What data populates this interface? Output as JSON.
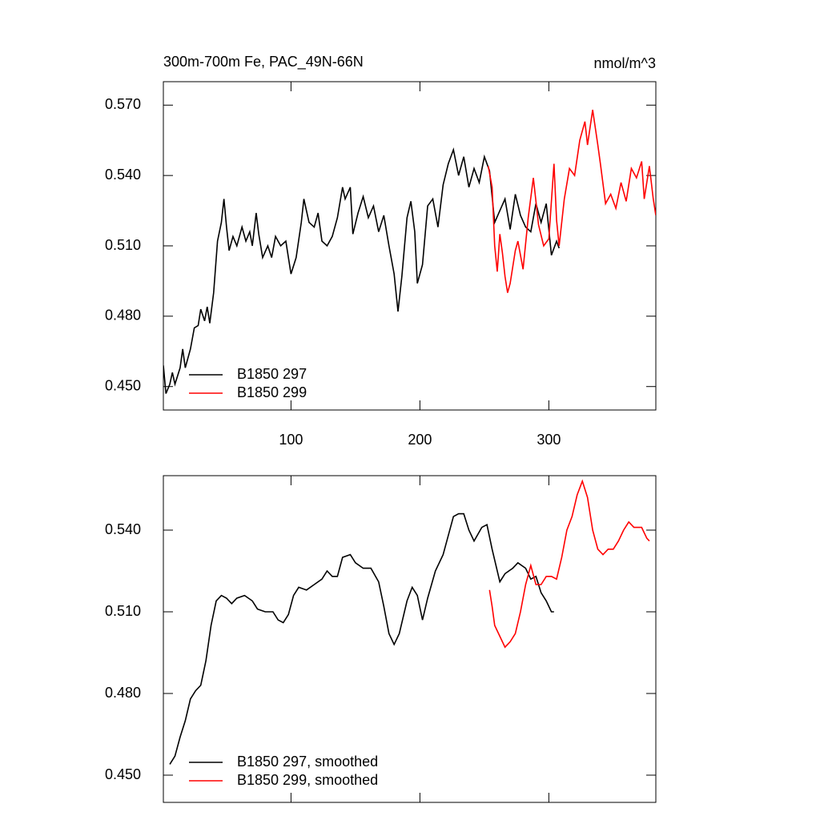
{
  "chart_data": [
    {
      "type": "line",
      "title": "300m-700m Fe, PAC_49N-66N",
      "units": "nmol/m^3",
      "xlim": [
        1,
        383
      ],
      "xticks": [
        100,
        200,
        300
      ],
      "ylim": [
        0.44,
        0.58
      ],
      "yticks": [
        {
          "value": 0.45,
          "label": "0.450"
        },
        {
          "value": 0.48,
          "label": "0.480"
        },
        {
          "value": 0.51,
          "label": "0.510"
        },
        {
          "value": 0.54,
          "label": "0.540"
        },
        {
          "value": 0.57,
          "label": "0.570"
        }
      ],
      "legend": "lower left",
      "series": [
        {
          "name": "B1850 297",
          "color": "#000000",
          "x": [
            1,
            3,
            6,
            8,
            10,
            14,
            16,
            18,
            22,
            25,
            28,
            30,
            33,
            35,
            37,
            40,
            43,
            46,
            48,
            50,
            52,
            55,
            58,
            62,
            65,
            68,
            70,
            73,
            75,
            78,
            82,
            85,
            88,
            92,
            96,
            100,
            104,
            108,
            110,
            114,
            118,
            121,
            124,
            128,
            132,
            136,
            140,
            142,
            146,
            148,
            152,
            156,
            160,
            164,
            168,
            172,
            176,
            180,
            183,
            186,
            190,
            193,
            196,
            198,
            202,
            206,
            210,
            214,
            218,
            222,
            226,
            230,
            234,
            238,
            242,
            246,
            250,
            254,
            258,
            262,
            266,
            270,
            274,
            278,
            282,
            286,
            290,
            294,
            298,
            302,
            306,
            308
          ],
          "values": [
            0.459,
            0.447,
            0.451,
            0.456,
            0.451,
            0.458,
            0.466,
            0.458,
            0.466,
            0.475,
            0.476,
            0.483,
            0.478,
            0.484,
            0.477,
            0.49,
            0.512,
            0.52,
            0.53,
            0.518,
            0.508,
            0.514,
            0.51,
            0.518,
            0.512,
            0.516,
            0.51,
            0.524,
            0.515,
            0.505,
            0.51,
            0.505,
            0.514,
            0.51,
            0.512,
            0.498,
            0.505,
            0.52,
            0.53,
            0.52,
            0.518,
            0.524,
            0.512,
            0.51,
            0.514,
            0.522,
            0.535,
            0.53,
            0.535,
            0.515,
            0.524,
            0.531,
            0.522,
            0.527,
            0.516,
            0.523,
            0.51,
            0.498,
            0.482,
            0.497,
            0.522,
            0.529,
            0.516,
            0.494,
            0.502,
            0.527,
            0.53,
            0.518,
            0.536,
            0.545,
            0.551,
            0.54,
            0.548,
            0.535,
            0.543,
            0.537,
            0.548,
            0.542,
            0.52,
            0.525,
            0.53,
            0.517,
            0.532,
            0.523,
            0.518,
            0.516,
            0.528,
            0.52,
            0.528,
            0.506,
            0.512,
            0.509
          ]
        },
        {
          "name": "B1850 299",
          "color": "#ff0000",
          "x": [
            253,
            256,
            258,
            260,
            262,
            264,
            266,
            268,
            270,
            274,
            276,
            280,
            284,
            288,
            292,
            296,
            300,
            304,
            306,
            308,
            312,
            316,
            320,
            324,
            328,
            330,
            334,
            338,
            340,
            344,
            348,
            352,
            356,
            360,
            364,
            368,
            372,
            374,
            378,
            381,
            383
          ],
          "values": [
            0.544,
            0.535,
            0.51,
            0.499,
            0.515,
            0.507,
            0.497,
            0.49,
            0.494,
            0.508,
            0.512,
            0.5,
            0.522,
            0.539,
            0.519,
            0.51,
            0.513,
            0.545,
            0.521,
            0.51,
            0.53,
            0.543,
            0.54,
            0.555,
            0.563,
            0.553,
            0.568,
            0.553,
            0.545,
            0.528,
            0.532,
            0.526,
            0.537,
            0.529,
            0.543,
            0.539,
            0.546,
            0.53,
            0.544,
            0.53,
            0.523
          ]
        }
      ]
    },
    {
      "type": "line",
      "xlim": [
        1,
        383
      ],
      "ylim": [
        0.44,
        0.56
      ],
      "yticks": [
        {
          "value": 0.45,
          "label": "0.450"
        },
        {
          "value": 0.48,
          "label": "0.480"
        },
        {
          "value": 0.51,
          "label": "0.510"
        },
        {
          "value": 0.54,
          "label": "0.540"
        }
      ],
      "legend": "lower left",
      "series": [
        {
          "name": "B1850 297, smoothed",
          "color": "#000000",
          "x": [
            6,
            10,
            14,
            18,
            22,
            26,
            30,
            34,
            38,
            42,
            46,
            50,
            54,
            58,
            64,
            70,
            74,
            80,
            86,
            90,
            94,
            98,
            102,
            106,
            112,
            118,
            124,
            128,
            132,
            136,
            140,
            146,
            150,
            156,
            162,
            168,
            172,
            176,
            180,
            184,
            190,
            194,
            198,
            202,
            206,
            212,
            218,
            222,
            226,
            230,
            234,
            238,
            242,
            248,
            252,
            256,
            262,
            266,
            272,
            276,
            282,
            286,
            290,
            294,
            298,
            302,
            304
          ],
          "values": [
            0.454,
            0.457,
            0.464,
            0.47,
            0.478,
            0.481,
            0.483,
            0.492,
            0.505,
            0.514,
            0.516,
            0.515,
            0.513,
            0.515,
            0.516,
            0.514,
            0.511,
            0.51,
            0.51,
            0.507,
            0.506,
            0.509,
            0.516,
            0.519,
            0.518,
            0.52,
            0.522,
            0.525,
            0.523,
            0.523,
            0.53,
            0.531,
            0.528,
            0.526,
            0.526,
            0.521,
            0.512,
            0.502,
            0.498,
            0.502,
            0.514,
            0.519,
            0.516,
            0.507,
            0.515,
            0.525,
            0.531,
            0.538,
            0.545,
            0.546,
            0.546,
            0.54,
            0.536,
            0.541,
            0.542,
            0.533,
            0.521,
            0.524,
            0.526,
            0.528,
            0.526,
            0.522,
            0.523,
            0.517,
            0.514,
            0.51,
            0.51
          ]
        },
        {
          "name": "B1850 299, smoothed",
          "color": "#ff0000",
          "x": [
            254,
            256,
            258,
            262,
            266,
            270,
            274,
            278,
            282,
            286,
            290,
            294,
            298,
            302,
            306,
            310,
            314,
            318,
            322,
            326,
            330,
            334,
            338,
            342,
            346,
            350,
            354,
            358,
            362,
            366,
            372,
            376,
            378
          ],
          "values": [
            0.518,
            0.512,
            0.505,
            0.501,
            0.497,
            0.499,
            0.502,
            0.51,
            0.52,
            0.527,
            0.52,
            0.52,
            0.523,
            0.523,
            0.522,
            0.53,
            0.54,
            0.545,
            0.553,
            0.558,
            0.552,
            0.54,
            0.533,
            0.531,
            0.533,
            0.533,
            0.536,
            0.54,
            0.543,
            0.541,
            0.541,
            0.537,
            0.536
          ]
        }
      ]
    }
  ]
}
